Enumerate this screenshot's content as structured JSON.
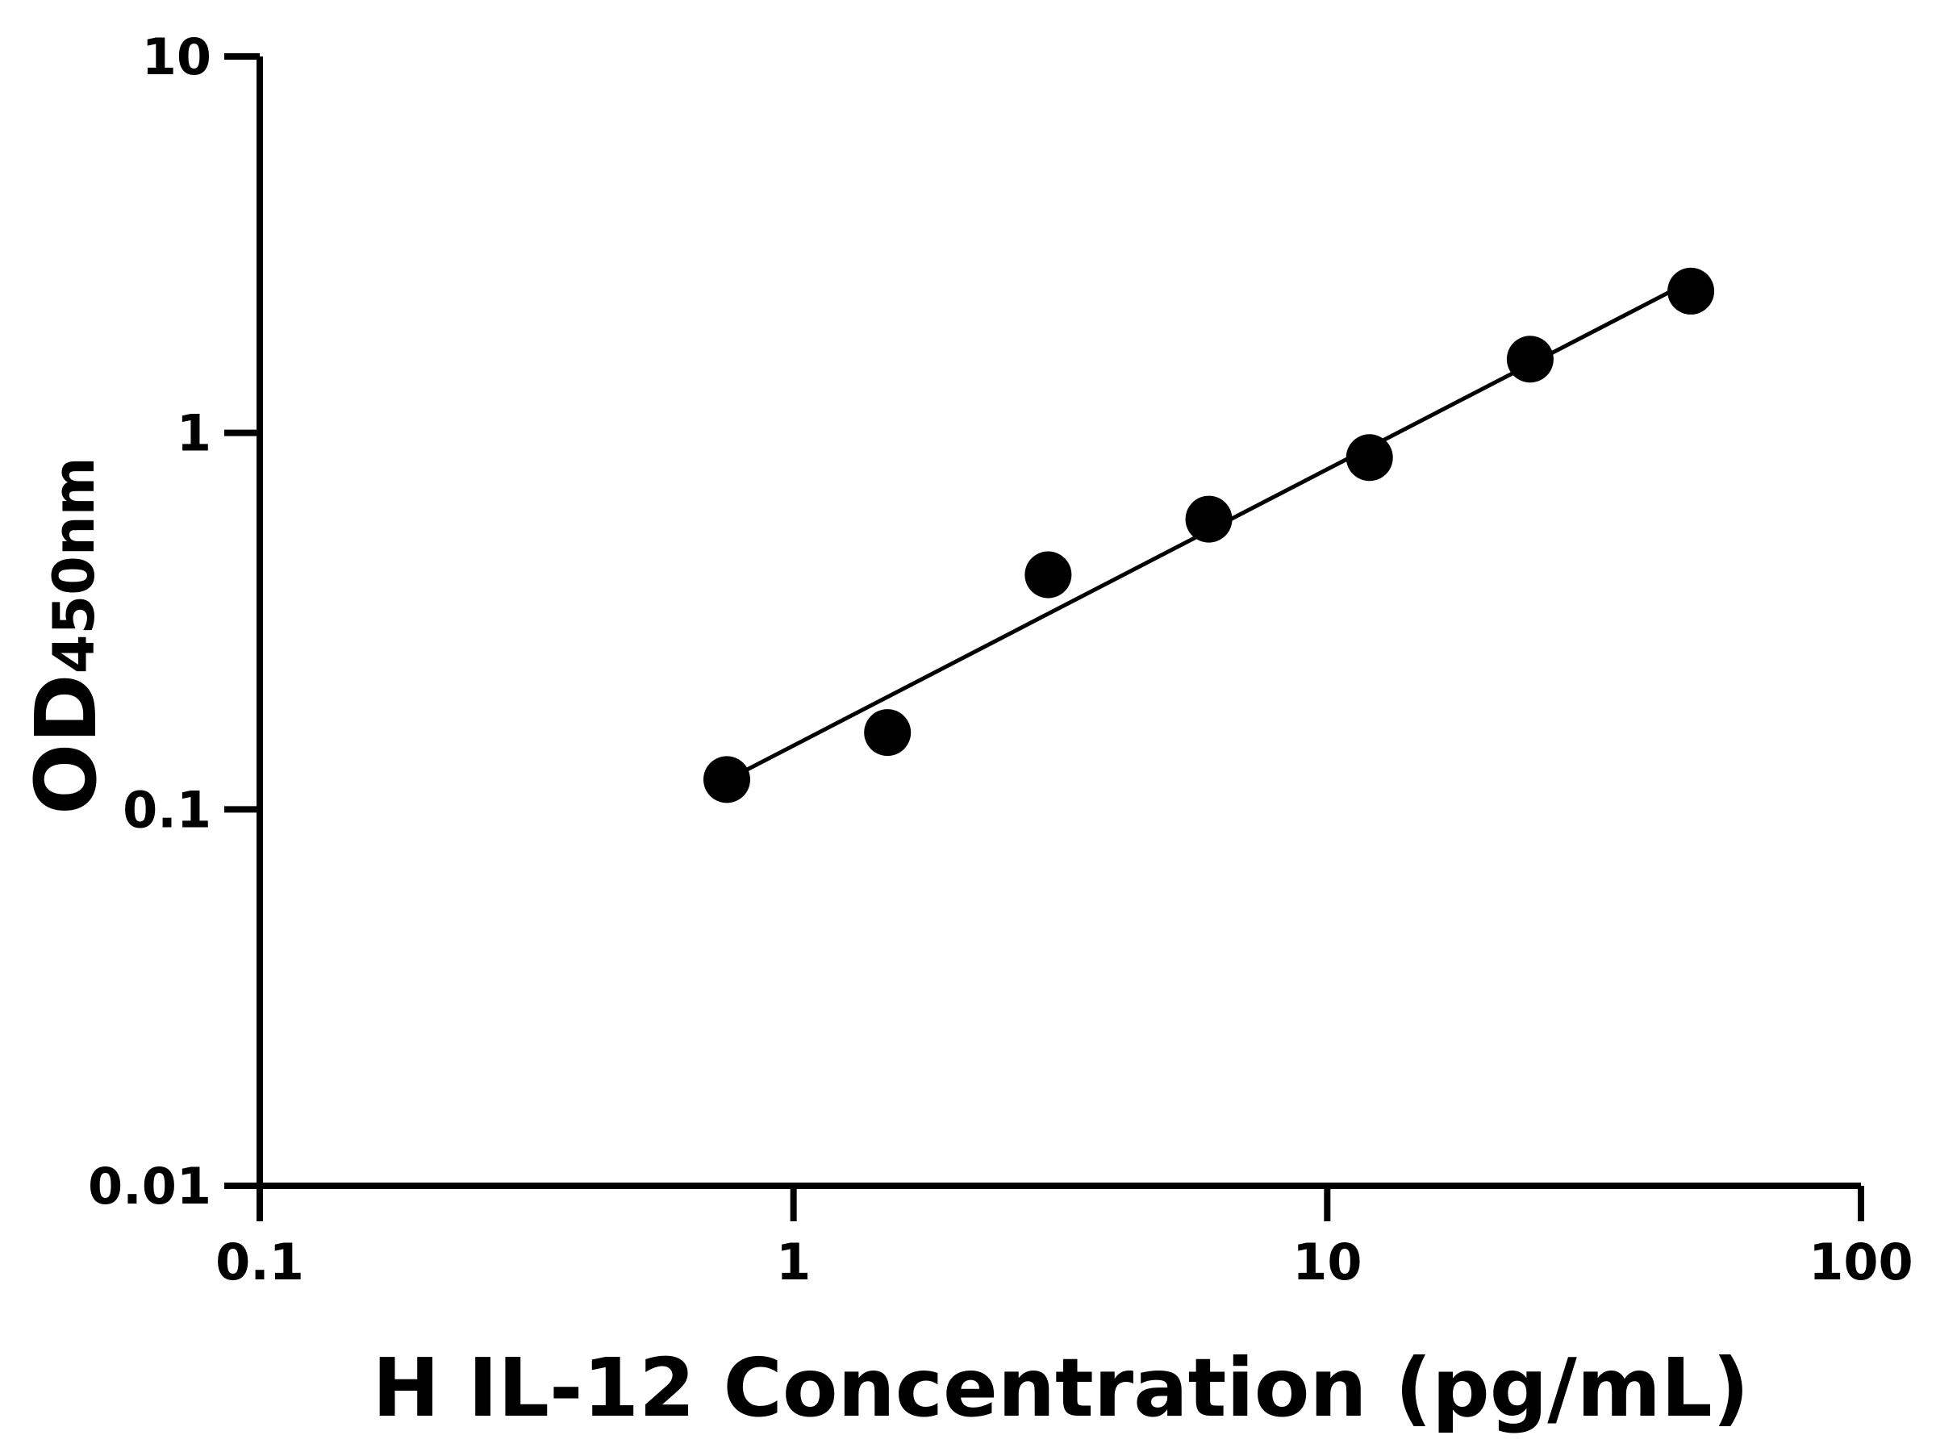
{
  "chart_data": {
    "type": "scatter",
    "title": "",
    "xlabel": "H IL-12 Concentration (pg/mL)",
    "ylabel": {
      "main": "OD",
      "subscript": "450nm"
    },
    "x_scale": "log",
    "y_scale": "log",
    "xlim": [
      0.1,
      100
    ],
    "ylim": [
      0.01,
      10
    ],
    "x_ticks": [
      {
        "value": 0.1,
        "label": "0.1"
      },
      {
        "value": 1,
        "label": "1"
      },
      {
        "value": 10,
        "label": "10"
      },
      {
        "value": 100,
        "label": "100"
      }
    ],
    "y_ticks": [
      {
        "value": 0.01,
        "label": "0.01"
      },
      {
        "value": 0.1,
        "label": "0.1"
      },
      {
        "value": 1,
        "label": "1"
      },
      {
        "value": 10,
        "label": "10"
      }
    ],
    "grid": false,
    "points": [
      {
        "x": 0.75,
        "y": 0.12
      },
      {
        "x": 1.5,
        "y": 0.16
      },
      {
        "x": 3.0,
        "y": 0.42
      },
      {
        "x": 6.0,
        "y": 0.59
      },
      {
        "x": 12,
        "y": 0.86
      },
      {
        "x": 24,
        "y": 1.57
      },
      {
        "x": 48,
        "y": 2.38
      }
    ],
    "fit_line": "log-log linear fit",
    "colors": {
      "points": "#000000",
      "line": "#000000",
      "axes": "#000000"
    }
  }
}
